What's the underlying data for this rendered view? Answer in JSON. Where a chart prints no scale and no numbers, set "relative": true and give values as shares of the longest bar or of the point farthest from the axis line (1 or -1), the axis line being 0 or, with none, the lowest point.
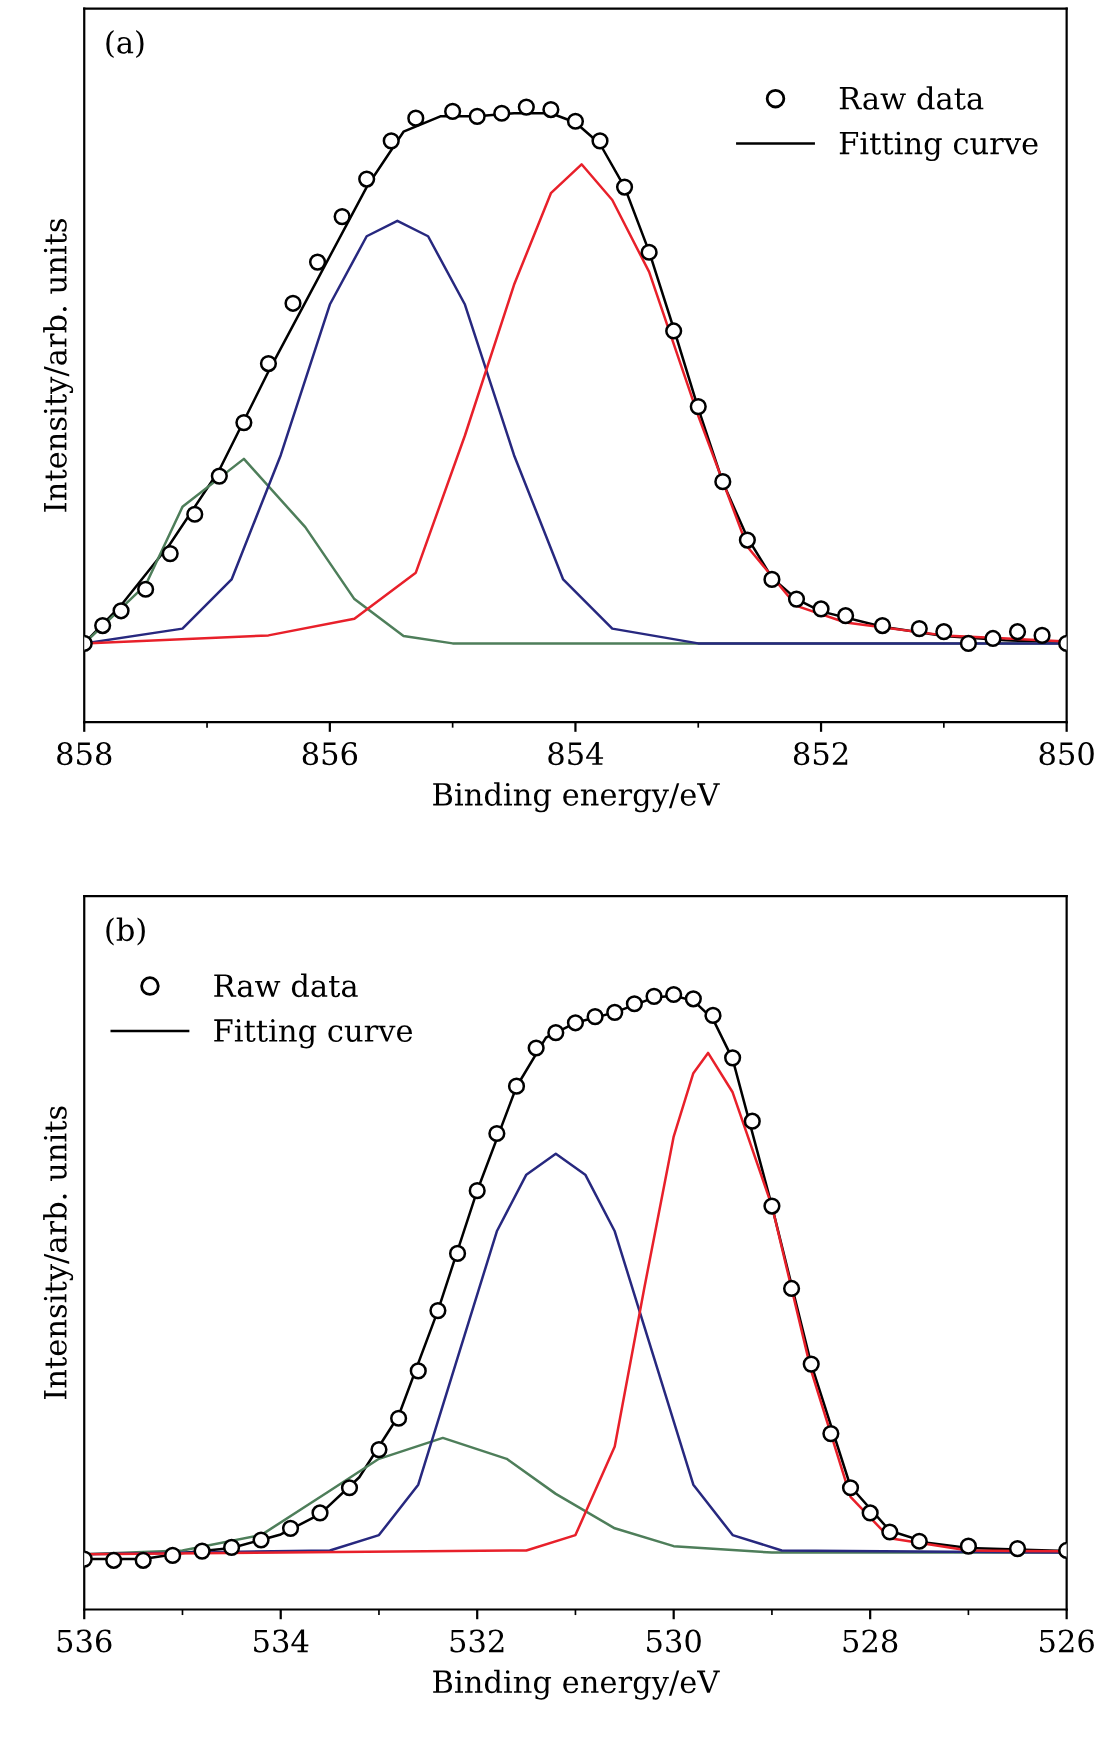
{
  "chart_data": [
    {
      "type": "line",
      "relative": true,
      "xlabel": "Binding energy/eV",
      "ylabel": "Intensity/arb. units",
      "annotations": [
        "(a)"
      ],
      "xlim": [
        858,
        850
      ],
      "xticks": [
        858,
        856,
        854,
        852,
        850
      ],
      "legend": "top right",
      "grid": false,
      "tick_labels": "x",
      "series": [
        {
          "type": "scatter",
          "name": "Raw data",
          "color": "#000000",
          "marker": "circle",
          "x": [
            858.0,
            857.85,
            857.7,
            857.5,
            857.3,
            857.1,
            856.9,
            856.7,
            856.5,
            856.3,
            856.1,
            855.9,
            855.7,
            855.5,
            855.3,
            855.0,
            854.8,
            854.6,
            854.4,
            854.2,
            854.0,
            853.8,
            853.6,
            853.4,
            853.2,
            853.0,
            852.8,
            852.6,
            852.4,
            852.2,
            852.0,
            851.8,
            851.5,
            851.2,
            851.0,
            850.8,
            850.6,
            850.4,
            850.2,
            850.0
          ],
          "values": [
            0.128,
            0.157,
            0.181,
            0.216,
            0.274,
            0.338,
            0.4,
            0.487,
            0.583,
            0.681,
            0.748,
            0.822,
            0.883,
            0.945,
            0.982,
            0.993,
            0.985,
            0.99,
            1.0,
            0.996,
            0.977,
            0.945,
            0.87,
            0.764,
            0.636,
            0.513,
            0.391,
            0.296,
            0.232,
            0.2,
            0.184,
            0.173,
            0.157,
            0.152,
            0.147,
            0.128,
            0.136,
            0.147,
            0.141,
            0.128
          ]
        },
        {
          "type": "line",
          "name": "Fitting curve",
          "color": "#000000",
          "x": [
            858.0,
            857.7,
            857.3,
            856.9,
            856.5,
            856.1,
            855.7,
            855.4,
            855.1,
            854.8,
            854.5,
            854.2,
            854.0,
            853.8,
            853.6,
            853.4,
            853.2,
            853.0,
            852.8,
            852.6,
            852.4,
            852.2,
            852.0,
            851.5,
            851.0,
            850.5,
            850.0
          ],
          "values": [
            0.128,
            0.19,
            0.29,
            0.41,
            0.57,
            0.72,
            0.87,
            0.96,
            0.985,
            0.985,
            0.99,
            0.99,
            0.975,
            0.94,
            0.87,
            0.765,
            0.64,
            0.51,
            0.39,
            0.3,
            0.235,
            0.2,
            0.18,
            0.155,
            0.14,
            0.133,
            0.13
          ]
        },
        {
          "type": "line",
          "color": "#4e7e5a",
          "x": [
            858.0,
            857.5,
            857.2,
            856.7,
            856.2,
            855.8,
            855.4,
            855.0,
            850.0
          ],
          "values": [
            0.128,
            0.223,
            0.35,
            0.428,
            0.317,
            0.2,
            0.14,
            0.128,
            0.128
          ]
        },
        {
          "type": "line",
          "color": "#27287f",
          "x": [
            858.0,
            857.2,
            856.8,
            856.4,
            856.0,
            855.7,
            855.45,
            855.2,
            854.9,
            854.5,
            854.1,
            853.7,
            853.0,
            850.0
          ],
          "values": [
            0.128,
            0.152,
            0.232,
            0.434,
            0.679,
            0.79,
            0.815,
            0.79,
            0.679,
            0.434,
            0.232,
            0.152,
            0.128,
            0.128
          ]
        },
        {
          "type": "line",
          "color": "#e8202a",
          "x": [
            858.0,
            856.5,
            855.8,
            855.3,
            854.9,
            854.5,
            854.2,
            853.95,
            853.7,
            853.4,
            853.0,
            852.6,
            852.2,
            851.8,
            851.0,
            850.0
          ],
          "values": [
            0.128,
            0.141,
            0.168,
            0.243,
            0.466,
            0.711,
            0.86,
            0.907,
            0.849,
            0.732,
            0.498,
            0.285,
            0.189,
            0.162,
            0.141,
            0.131
          ]
        }
      ]
    },
    {
      "type": "line",
      "relative": true,
      "xlabel": "Binding energy/eV",
      "ylabel": "Intensity/arb. units",
      "annotations": [
        "(b)"
      ],
      "xlim": [
        536,
        526
      ],
      "xticks": [
        536,
        534,
        532,
        530,
        528,
        526
      ],
      "legend": "top left",
      "grid": false,
      "tick_labels": "x",
      "series": [
        {
          "type": "scatter",
          "name": "Raw data",
          "color": "#000000",
          "marker": "circle",
          "x": [
            536.0,
            535.7,
            535.4,
            535.1,
            534.8,
            534.5,
            534.2,
            533.9,
            533.6,
            533.3,
            533.0,
            532.8,
            532.6,
            532.4,
            532.2,
            532.0,
            531.8,
            531.6,
            531.4,
            531.2,
            531.0,
            530.8,
            530.6,
            530.4,
            530.2,
            530.0,
            529.8,
            529.6,
            529.4,
            529.2,
            529.0,
            528.8,
            528.6,
            528.4,
            528.2,
            528.0,
            527.8,
            527.5,
            527.0,
            526.5,
            526.0
          ],
          "values": [
            0.082,
            0.08,
            0.08,
            0.088,
            0.095,
            0.101,
            0.113,
            0.132,
            0.157,
            0.198,
            0.26,
            0.311,
            0.388,
            0.486,
            0.579,
            0.681,
            0.774,
            0.851,
            0.913,
            0.938,
            0.954,
            0.964,
            0.971,
            0.985,
            0.997,
            1.0,
            0.993,
            0.966,
            0.897,
            0.794,
            0.656,
            0.522,
            0.399,
            0.286,
            0.198,
            0.157,
            0.126,
            0.111,
            0.103,
            0.099,
            0.096
          ]
        },
        {
          "type": "line",
          "name": "Fitting curve",
          "color": "#000000",
          "x": [
            536.0,
            535.4,
            535.0,
            534.5,
            534.0,
            533.6,
            533.2,
            532.8,
            532.4,
            532.0,
            531.6,
            531.3,
            531.0,
            530.6,
            530.2,
            530.0,
            529.8,
            529.6,
            529.4,
            529.0,
            528.6,
            528.2,
            527.8,
            527.4,
            527.0,
            526.0
          ],
          "values": [
            0.082,
            0.082,
            0.092,
            0.1,
            0.122,
            0.155,
            0.215,
            0.315,
            0.486,
            0.681,
            0.85,
            0.93,
            0.954,
            0.971,
            0.995,
            0.998,
            0.99,
            0.96,
            0.895,
            0.656,
            0.399,
            0.2,
            0.128,
            0.108,
            0.1,
            0.095
          ]
        },
        {
          "type": "line",
          "color": "#4e7e5a",
          "x": [
            536.0,
            535.0,
            534.2,
            533.5,
            533.0,
            532.35,
            531.7,
            531.2,
            530.6,
            530.0,
            529.0,
            526.0
          ],
          "values": [
            0.09,
            0.096,
            0.121,
            0.193,
            0.245,
            0.279,
            0.245,
            0.188,
            0.132,
            0.103,
            0.0925,
            0.0925
          ]
        },
        {
          "type": "line",
          "color": "#27287f",
          "x": [
            536.0,
            533.5,
            533.0,
            532.6,
            532.2,
            531.8,
            531.5,
            531.2,
            530.9,
            530.6,
            530.2,
            529.8,
            529.4,
            528.9,
            526.0
          ],
          "values": [
            0.09,
            0.096,
            0.121,
            0.203,
            0.409,
            0.615,
            0.707,
            0.741,
            0.707,
            0.615,
            0.409,
            0.203,
            0.121,
            0.096,
            0.0925
          ]
        },
        {
          "type": "line",
          "color": "#e8202a",
          "x": [
            536.0,
            531.5,
            531.0,
            530.6,
            530.3,
            530.0,
            529.8,
            529.65,
            529.4,
            529.0,
            528.6,
            528.2,
            527.8,
            527.0,
            526.0
          ],
          "values": [
            0.09,
            0.096,
            0.121,
            0.265,
            0.522,
            0.769,
            0.872,
            0.905,
            0.841,
            0.656,
            0.388,
            0.183,
            0.116,
            0.096,
            0.0946
          ]
        }
      ]
    }
  ]
}
